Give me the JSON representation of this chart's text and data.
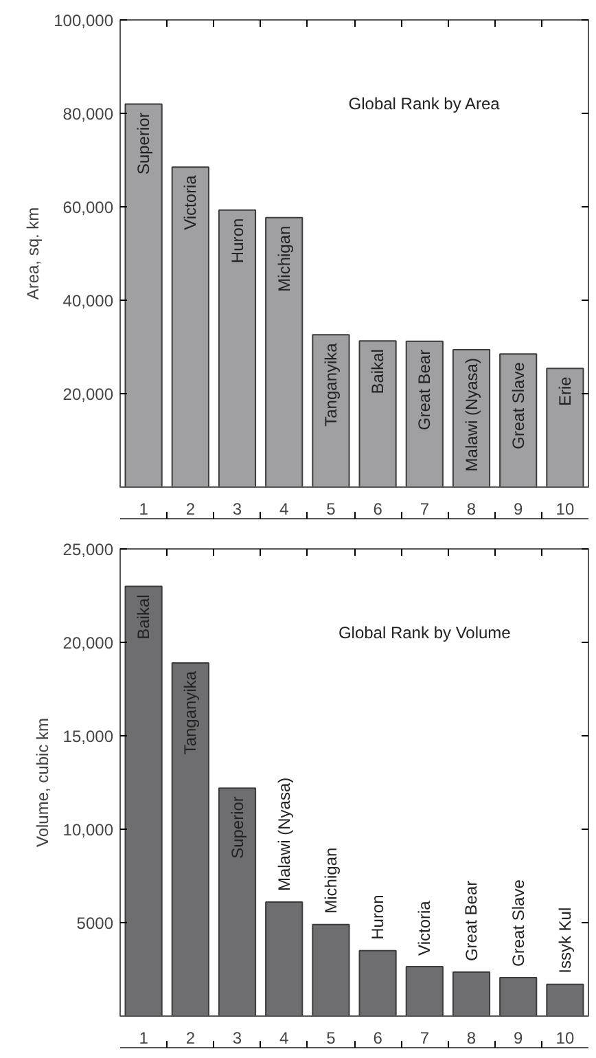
{
  "chart_data": [
    {
      "type": "bar",
      "title": "Global Rank by Area",
      "ylabel": "Area, sq. km",
      "categories": [
        "1",
        "2",
        "3",
        "4",
        "5",
        "6",
        "7",
        "8",
        "9",
        "10"
      ],
      "values": [
        82000,
        68500,
        59300,
        57700,
        32600,
        31300,
        31200,
        29400,
        28500,
        25400
      ],
      "color": "#a0a0a2",
      "value_labels": [
        "Superior",
        "Victoria",
        "Huron",
        "Michigan",
        "Tanganyika",
        "Baikal",
        "Great Bear",
        "Malawi (Nyasa)",
        "Great Slave",
        "Erie"
      ],
      "ylim": [
        0,
        100000
      ],
      "yticks": [
        {
          "value": 20000,
          "label": "20,000"
        },
        {
          "value": 40000,
          "label": "40,000"
        },
        {
          "value": 60000,
          "label": "60,000"
        },
        {
          "value": 80000,
          "label": "80,000"
        },
        {
          "value": 100000,
          "label": "100,000"
        }
      ],
      "grid": false
    },
    {
      "type": "bar",
      "title": "Global Rank by Volume",
      "ylabel": "Volume, cubic km",
      "categories": [
        "1",
        "2",
        "3",
        "4",
        "5",
        "6",
        "7",
        "8",
        "9",
        "10"
      ],
      "values": [
        23000,
        18900,
        12200,
        6100,
        4900,
        3500,
        2650,
        2350,
        2060,
        1700
      ],
      "color": "#6e6e70",
      "value_labels": [
        "Baikal",
        "Tanganyika",
        "Superior",
        "Malawi (Nyasa)",
        "Michigan",
        "Huron",
        "Victoria",
        "Great Bear",
        "Great Slave",
        "Issyk Kul"
      ],
      "ylim": [
        0,
        25000
      ],
      "yticks": [
        5000,
        {
          "value": 10000,
          "label": "10,000"
        },
        {
          "value": 15000,
          "label": "15,000"
        },
        {
          "value": 20000,
          "label": "20,000"
        },
        {
          "value": 25000,
          "label": "25,000"
        }
      ],
      "grid": false
    }
  ]
}
